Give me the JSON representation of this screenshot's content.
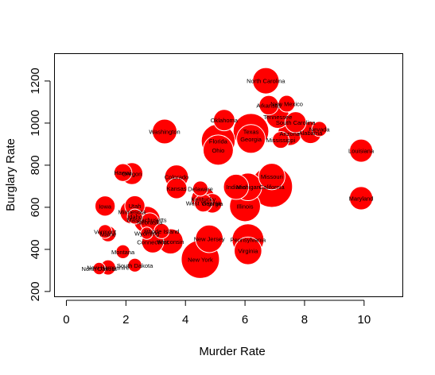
{
  "chart_data": {
    "type": "scatter",
    "xlabel": "Murder Rate",
    "ylabel": "Burglary Rate",
    "xlim": [
      -0.4,
      11.3
    ],
    "ylim": [
      175,
      1330
    ],
    "xticks": [
      0,
      2,
      4,
      6,
      8,
      10
    ],
    "yticks": [
      200,
      400,
      600,
      800,
      1000,
      1200
    ],
    "bubble_color": "#ff0000",
    "size_encoding": "bubble area varies by state",
    "points": [
      {
        "state": "North Carolina",
        "x": 6.7,
        "y": 1201,
        "size": 0.55
      },
      {
        "state": "New Mexico",
        "x": 7.4,
        "y": 1092,
        "size": 0.22
      },
      {
        "state": "Arkansas",
        "x": 6.8,
        "y": 1085,
        "size": 0.3
      },
      {
        "state": "Tennessee",
        "x": 7.1,
        "y": 1030,
        "size": 0.42
      },
      {
        "state": "South Carolina",
        "x": 7.7,
        "y": 1004,
        "size": 0.35
      },
      {
        "state": "Oklahoma",
        "x": 5.3,
        "y": 1014,
        "size": 0.36
      },
      {
        "state": "Nevada",
        "x": 8.5,
        "y": 972,
        "size": 0.18
      },
      {
        "state": "Alabama",
        "x": 8.2,
        "y": 955,
        "size": 0.38
      },
      {
        "state": "Arizona",
        "x": 7.5,
        "y": 950,
        "size": 0.45
      },
      {
        "state": "Washington",
        "x": 3.3,
        "y": 960,
        "size": 0.48
      },
      {
        "state": "Texas",
        "x": 6.2,
        "y": 961,
        "size": 1.0
      },
      {
        "state": "Georgia",
        "x": 6.2,
        "y": 925,
        "size": 0.65
      },
      {
        "state": "Mississippi",
        "x": 7.2,
        "y": 920,
        "size": 0.22
      },
      {
        "state": "Florida",
        "x": 5.1,
        "y": 915,
        "size": 0.9
      },
      {
        "state": "Ohio",
        "x": 5.1,
        "y": 872,
        "size": 0.72
      },
      {
        "state": "Louisiana",
        "x": 9.9,
        "y": 869,
        "size": 0.42
      },
      {
        "state": "Hawaii",
        "x": 1.9,
        "y": 765,
        "size": 0.25
      },
      {
        "state": "Oregon",
        "x": 2.2,
        "y": 760,
        "size": 0.38
      },
      {
        "state": "Colorado",
        "x": 3.7,
        "y": 745,
        "size": 0.44
      },
      {
        "state": "Missouri",
        "x": 6.9,
        "y": 746,
        "size": 0.55
      },
      {
        "state": "California",
        "x": 6.9,
        "y": 698,
        "size": 1.35
      },
      {
        "state": "Indiana",
        "x": 5.7,
        "y": 697,
        "size": 0.5
      },
      {
        "state": "Michigan",
        "x": 6.1,
        "y": 697,
        "size": 0.6
      },
      {
        "state": "Kansas",
        "x": 3.7,
        "y": 690,
        "size": 0.34
      },
      {
        "state": "Delaware",
        "x": 4.5,
        "y": 689,
        "size": 0.18
      },
      {
        "state": "Maryland",
        "x": 9.9,
        "y": 643,
        "size": 0.43
      },
      {
        "state": "Kentucky",
        "x": 4.6,
        "y": 640,
        "size": 0.45
      },
      {
        "state": "West Virginia",
        "x": 4.6,
        "y": 620,
        "size": 0.25
      },
      {
        "state": "Georgia",
        "x": 4.9,
        "y": 619,
        "size": 0.3
      },
      {
        "state": "Illinois",
        "x": 6.0,
        "y": 605,
        "size": 0.75
      },
      {
        "state": "Iowa",
        "x": 1.3,
        "y": 606,
        "size": 0.32
      },
      {
        "state": "Utah",
        "x": 2.3,
        "y": 607,
        "size": 0.32
      },
      {
        "state": "Minnesota",
        "x": 2.2,
        "y": 578,
        "size": 0.45
      },
      {
        "state": "Idaho",
        "x": 2.3,
        "y": 556,
        "size": 0.18
      },
      {
        "state": "Massachusetts",
        "x": 2.7,
        "y": 541,
        "size": 0.56
      },
      {
        "state": "Nebraska",
        "x": 2.8,
        "y": 529,
        "size": 0.28
      },
      {
        "state": "Rhode Island",
        "x": 3.2,
        "y": 487,
        "size": 0.18
      },
      {
        "state": "Vermont",
        "x": 1.3,
        "y": 485,
        "size": 0.15
      },
      {
        "state": "Wyoming",
        "x": 2.7,
        "y": 477,
        "size": 0.12
      },
      {
        "state": "Maine",
        "x": 1.4,
        "y": 474,
        "size": 0.2
      },
      {
        "state": "Connecticut",
        "x": 2.9,
        "y": 435,
        "size": 0.38
      },
      {
        "state": "Wisconsin",
        "x": 3.5,
        "y": 438,
        "size": 0.5
      },
      {
        "state": "New Jersey",
        "x": 4.8,
        "y": 450,
        "size": 0.6
      },
      {
        "state": "Pennsylvania",
        "x": 6.1,
        "y": 446,
        "size": 0.8
      },
      {
        "state": "Virginia",
        "x": 6.1,
        "y": 393,
        "size": 0.6
      },
      {
        "state": "Montana",
        "x": 1.9,
        "y": 389,
        "size": 0.15
      },
      {
        "state": "New York",
        "x": 4.5,
        "y": 353,
        "size": 1.15
      },
      {
        "state": "South Dakota",
        "x": 2.3,
        "y": 325,
        "size": 0.15
      },
      {
        "state": "New Hampshire",
        "x": 1.4,
        "y": 314,
        "size": 0.18
      },
      {
        "state": "North Dakota",
        "x": 1.1,
        "y": 309,
        "size": 0.12
      }
    ]
  }
}
